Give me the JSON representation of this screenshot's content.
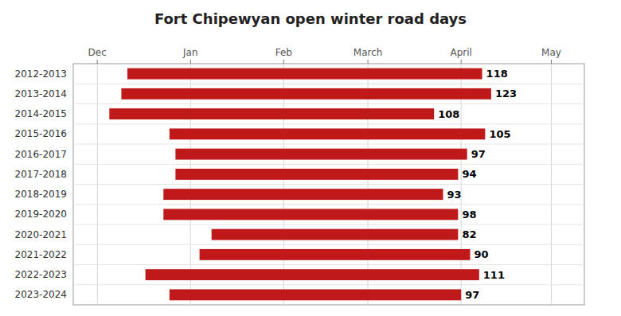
{
  "chart_data": {
    "type": "bar",
    "orientation": "horizontal",
    "title": "Fort Chipewyan open winter road days",
    "categories": [
      "2012-2013",
      "2013-2014",
      "2014-2015",
      "2015-2016",
      "2016-2017",
      "2017-2018",
      "2018-2019",
      "2019-2020",
      "2020-2021",
      "2021-2022",
      "2022-2023",
      "2023-2024"
    ],
    "values": [
      118,
      123,
      108,
      105,
      97,
      94,
      93,
      98,
      82,
      90,
      111,
      97
    ],
    "starts": [
      10,
      8,
      4,
      24,
      26,
      26,
      22,
      22,
      38,
      34,
      16,
      24
    ],
    "color": "#c0191a",
    "data_labels": true,
    "grid": true,
    "xlim": [
      -8,
      162
    ],
    "xticks": [
      {
        "value": 0,
        "label": "Dec"
      },
      {
        "value": 31,
        "label": "Jan"
      },
      {
        "value": 62,
        "label": "Feb"
      },
      {
        "value": 90,
        "label": "March"
      },
      {
        "value": 121,
        "label": "April"
      },
      {
        "value": 151,
        "label": "May"
      }
    ]
  }
}
